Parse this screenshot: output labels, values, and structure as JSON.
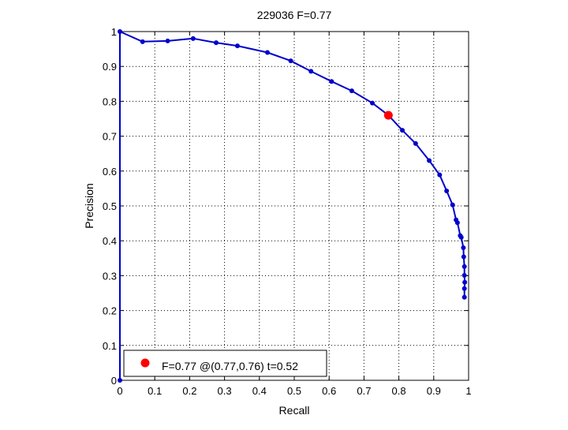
{
  "chart_data": {
    "type": "line",
    "title": "229036 F=0.77",
    "xlabel": "Recall",
    "ylabel": "Precision",
    "xlim": [
      0,
      1
    ],
    "ylim": [
      0,
      1
    ],
    "grid": true,
    "x_ticks": [
      "0",
      "0.1",
      "0.2",
      "0.3",
      "0.4",
      "0.5",
      "0.6",
      "0.7",
      "0.8",
      "0.9",
      "1"
    ],
    "y_ticks": [
      "0",
      "0.1",
      "0.2",
      "0.3",
      "0.4",
      "0.5",
      "0.6",
      "0.7",
      "0.8",
      "0.9",
      "1"
    ],
    "series": [
      {
        "color": "#0000cc",
        "points": [
          [
            0.0,
            0.0
          ],
          [
            0.0,
            1.0
          ],
          [
            0.065,
            0.971
          ],
          [
            0.137,
            0.973
          ],
          [
            0.21,
            0.98
          ],
          [
            0.276,
            0.968
          ],
          [
            0.337,
            0.959
          ],
          [
            0.423,
            0.94
          ],
          [
            0.49,
            0.916
          ],
          [
            0.548,
            0.886
          ],
          [
            0.607,
            0.857
          ],
          [
            0.665,
            0.83
          ],
          [
            0.724,
            0.795
          ],
          [
            0.77,
            0.76
          ],
          [
            0.81,
            0.717
          ],
          [
            0.848,
            0.679
          ],
          [
            0.887,
            0.63
          ],
          [
            0.917,
            0.589
          ],
          [
            0.937,
            0.543
          ],
          [
            0.954,
            0.503
          ],
          [
            0.964,
            0.46
          ],
          [
            0.968,
            0.452
          ],
          [
            0.976,
            0.415
          ],
          [
            0.979,
            0.41
          ],
          [
            0.985,
            0.38
          ],
          [
            0.986,
            0.354
          ],
          [
            0.988,
            0.326
          ],
          [
            0.988,
            0.301
          ],
          [
            0.989,
            0.281
          ],
          [
            0.988,
            0.263
          ],
          [
            0.988,
            0.238
          ]
        ]
      }
    ],
    "best_point": {
      "x": 0.77,
      "y": 0.76,
      "color": "#ff0000"
    },
    "legend": {
      "label": "F=0.77 @(0.77,0.76) t=0.52",
      "placement": "bottom-left"
    }
  }
}
